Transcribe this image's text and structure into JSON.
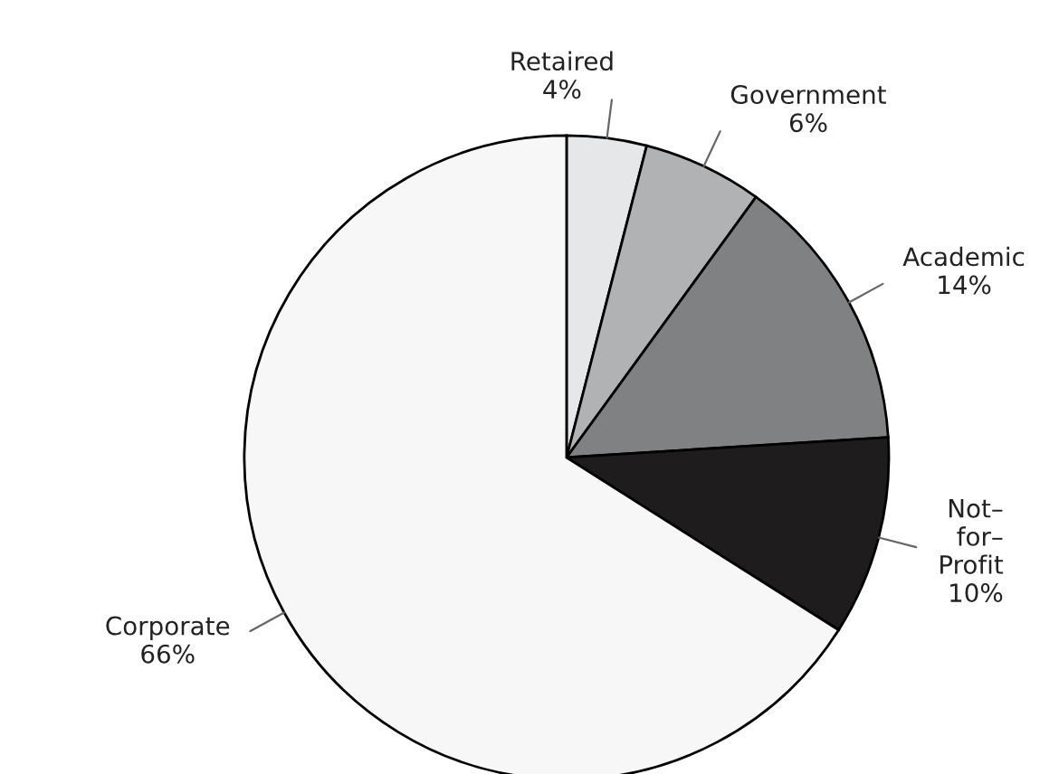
{
  "chart_data": {
    "type": "pie",
    "categories": [
      "Retaired",
      "Government",
      "Academic",
      "Not–\nfor–\nProfit",
      "Corporate"
    ],
    "values": [
      4,
      6,
      14,
      10,
      66
    ],
    "value_labels": [
      "4%",
      "6%",
      "14%",
      "10%",
      "66%"
    ],
    "colors": [
      "#e6e7e9",
      "#b1b2b4",
      "#808183",
      "#1e1c1d",
      "#f7f7f7"
    ]
  }
}
